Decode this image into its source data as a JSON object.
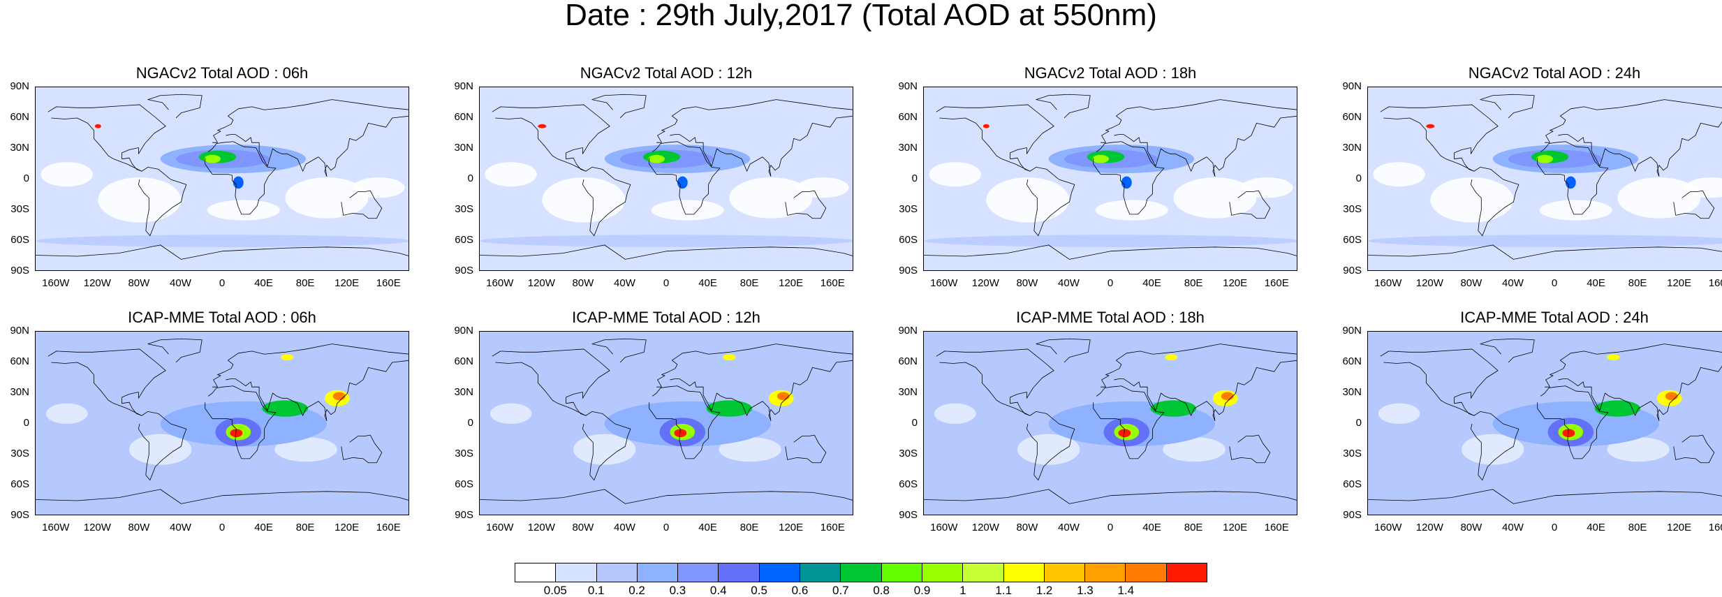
{
  "title": "Date : 29th July,2017 (Total AOD at 550nm)",
  "panels": [
    {
      "title": "NGACv2 Total AOD : 06h",
      "model": "NGACv2"
    },
    {
      "title": "NGACv2 Total AOD : 12h",
      "model": "NGACv2"
    },
    {
      "title": "NGACv2 Total AOD : 18h",
      "model": "NGACv2"
    },
    {
      "title": "NGACv2 Total AOD : 24h",
      "model": "NGACv2"
    },
    {
      "title": "ICAP-MME Total AOD : 06h",
      "model": "ICAP-MME"
    },
    {
      "title": "ICAP-MME Total AOD : 12h",
      "model": "ICAP-MME"
    },
    {
      "title": "ICAP-MME Total AOD : 18h",
      "model": "ICAP-MME"
    },
    {
      "title": "ICAP-MME Total AOD : 24h",
      "model": "ICAP-MME"
    }
  ],
  "lat_ticks": [
    "90N",
    "60N",
    "30N",
    "0",
    "30S",
    "60S",
    "90S"
  ],
  "lon_ticks": [
    "160W",
    "120W",
    "80W",
    "40W",
    "0",
    "40E",
    "80E",
    "120E",
    "160E"
  ],
  "colorbar": {
    "labels": [
      "0.05",
      "0.1",
      "0.2",
      "0.3",
      "0.4",
      "0.5",
      "0.6",
      "0.7",
      "0.8",
      "0.9",
      "1",
      "1.1",
      "1.2",
      "1.3",
      "1.4"
    ],
    "colors": [
      "#ffffff",
      "#d6e2ff",
      "#b5c9ff",
      "#8eb2ff",
      "#7f96ff",
      "#6370f8",
      "#0063ff",
      "#009696",
      "#00c633",
      "#63ff00",
      "#96ff00",
      "#c6ff33",
      "#ffff00",
      "#ffc600",
      "#ffa000",
      "#ff7c00",
      "#ff1900"
    ]
  }
}
